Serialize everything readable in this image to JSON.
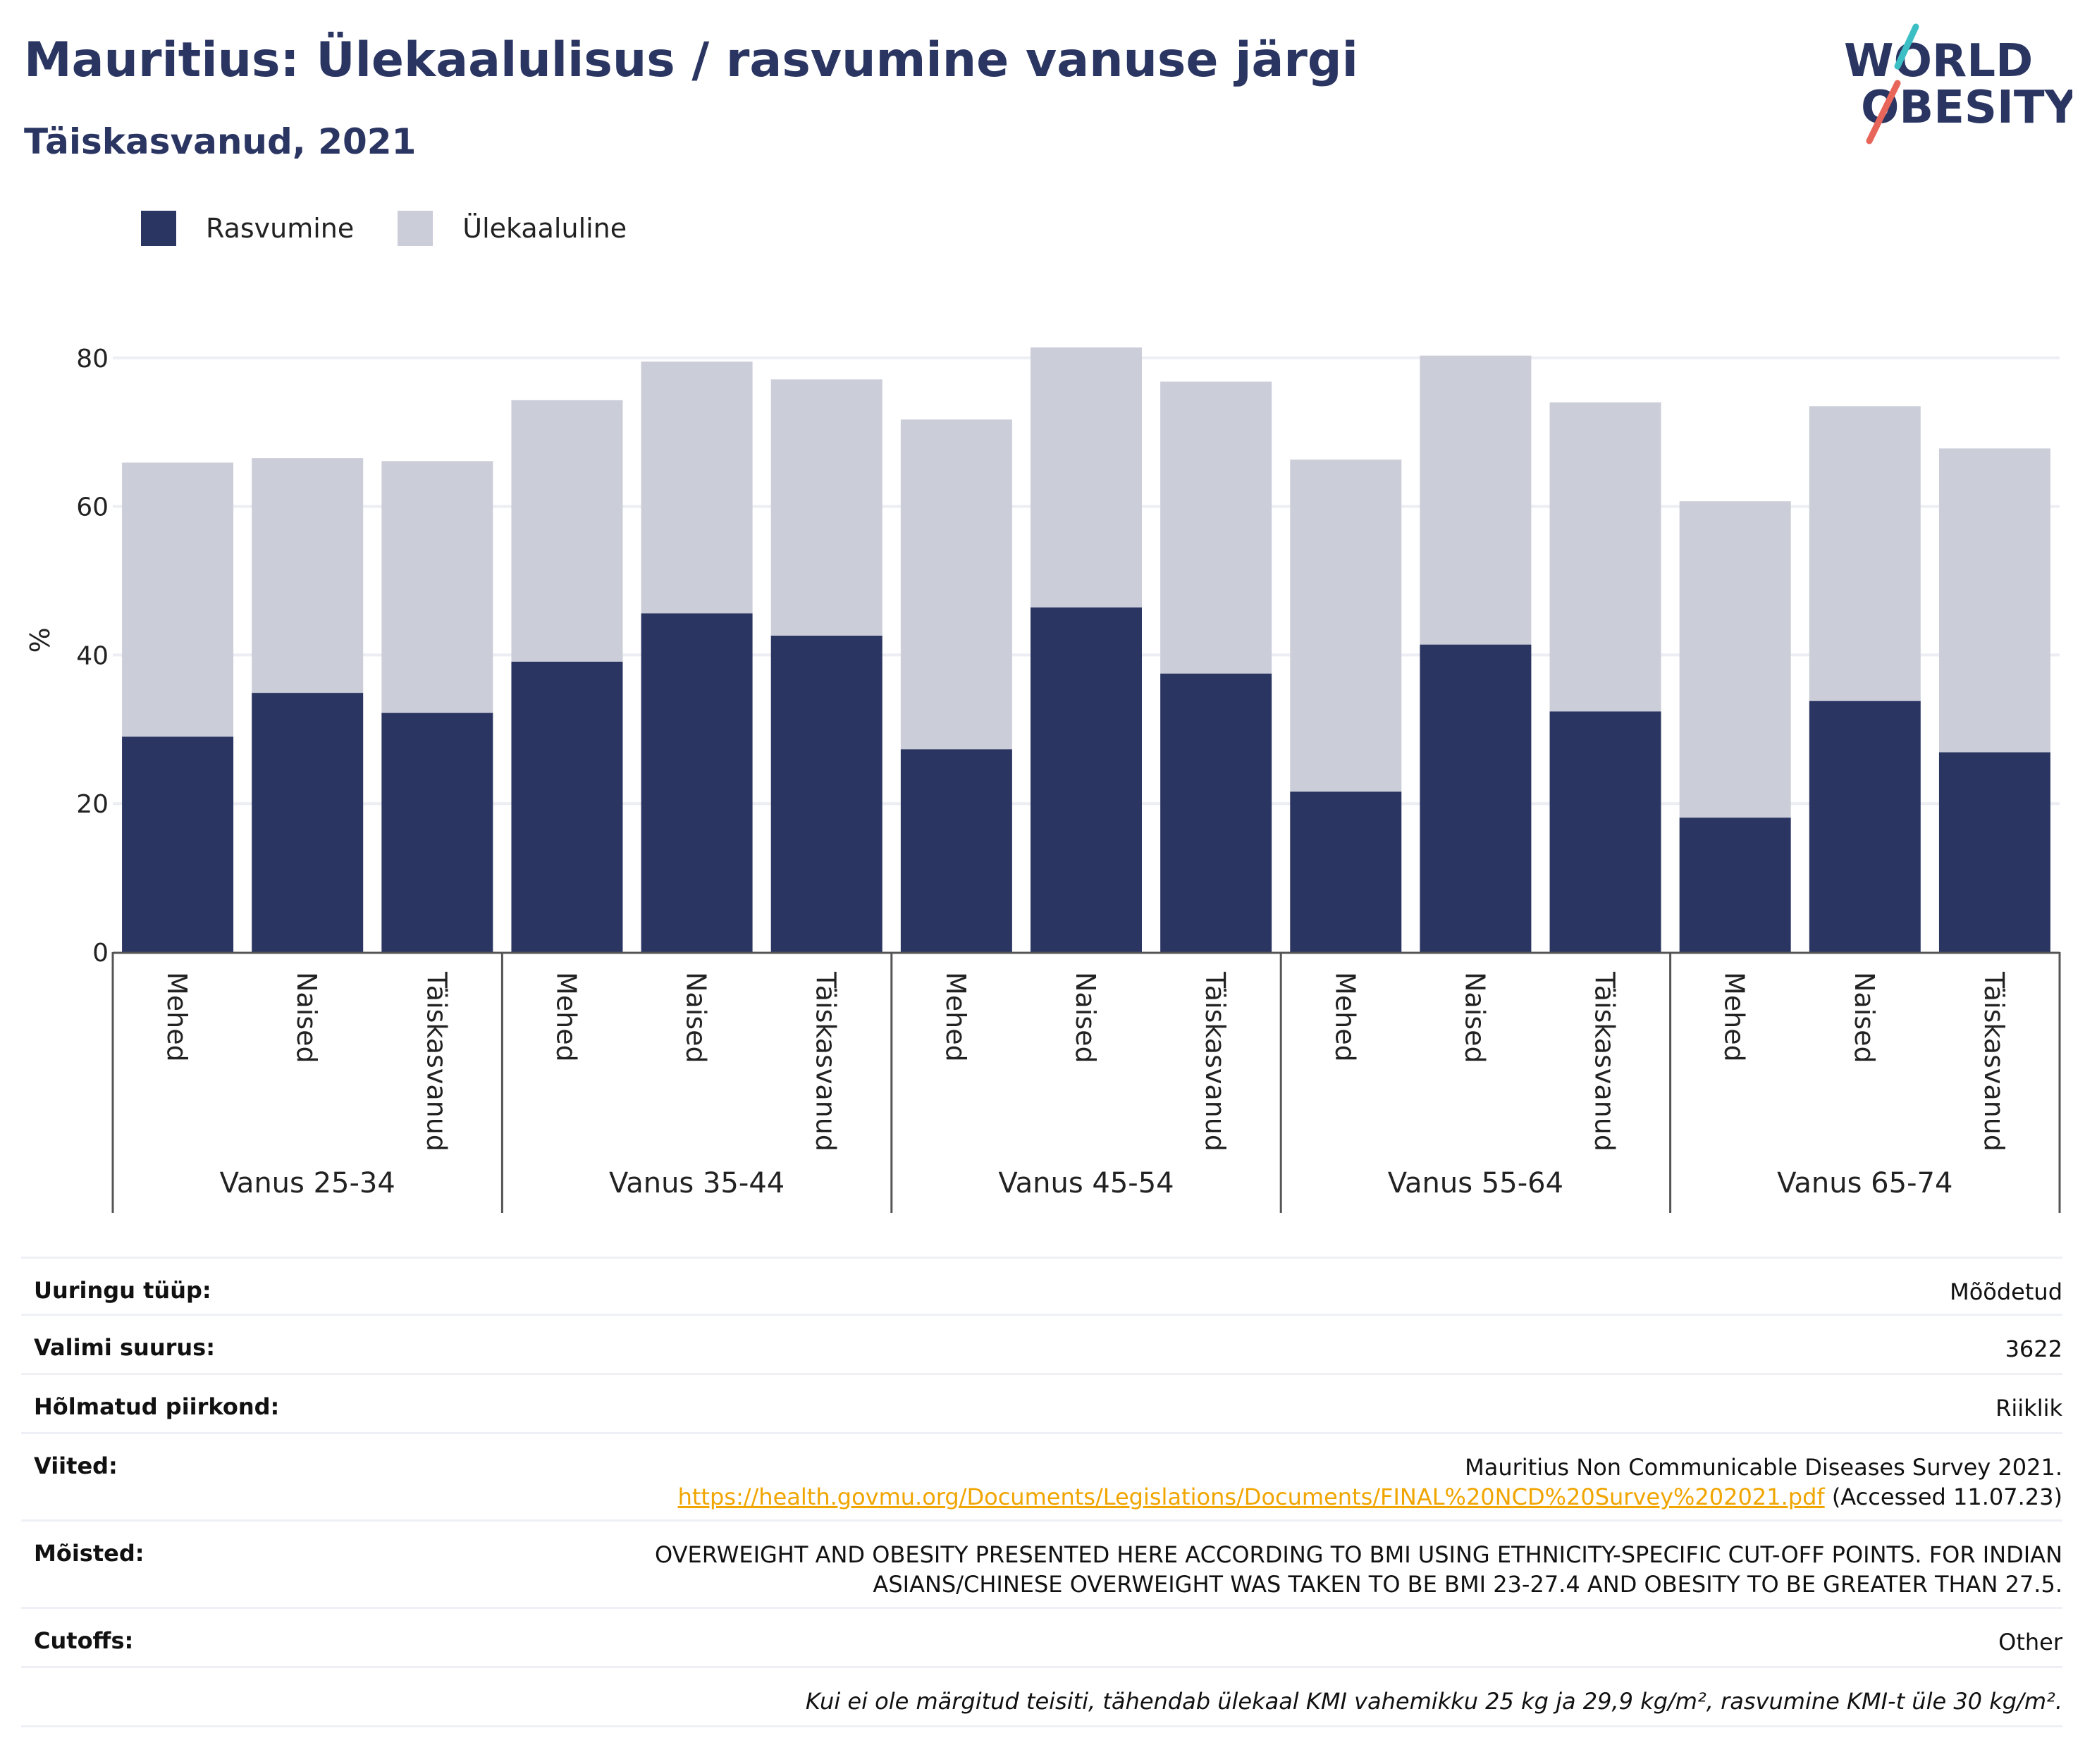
{
  "header": {
    "title": "Mauritius: Ülekaalulisus / rasvumine vanuse järgi",
    "subtitle": "Täiskasvanud, 2021"
  },
  "logo": {
    "line1": "WORLD",
    "line2": "OBESITY"
  },
  "colors": {
    "obesity": "#2a3562",
    "overweight": "#cbcdd9",
    "title": "#2a3562",
    "link": "#f0a500"
  },
  "legend": [
    {
      "label": "Rasvumine",
      "color": "#2a3562"
    },
    {
      "label": "Ülekaaluline",
      "color": "#cbcdd9"
    }
  ],
  "chart_data": {
    "type": "bar",
    "stacked": true,
    "ylabel": "%",
    "ylim": [
      0,
      85
    ],
    "yticks": [
      0,
      20,
      40,
      60,
      80
    ],
    "grid": true,
    "legend_position": "top-left",
    "groups": [
      {
        "label": "Vanus 25-34",
        "categories": [
          "Mehed",
          "Naised",
          "Täiskasvanud"
        ]
      },
      {
        "label": "Vanus 35-44",
        "categories": [
          "Mehed",
          "Naised",
          "Täiskasvanud"
        ]
      },
      {
        "label": "Vanus 45-54",
        "categories": [
          "Mehed",
          "Naised",
          "Täiskasvanud"
        ]
      },
      {
        "label": "Vanus 55-64",
        "categories": [
          "Mehed",
          "Naised",
          "Täiskasvanud"
        ]
      },
      {
        "label": "Vanus 65-74",
        "categories": [
          "Mehed",
          "Naised",
          "Täiskasvanud"
        ]
      }
    ],
    "series": [
      {
        "name": "Rasvumine",
        "values": [
          29.0,
          34.9,
          32.2,
          39.1,
          45.6,
          42.6,
          27.3,
          46.4,
          37.5,
          21.6,
          41.4,
          32.4,
          18.1,
          33.8,
          26.9
        ]
      },
      {
        "name": "Ülekaaluline",
        "values": [
          36.9,
          31.6,
          33.9,
          35.2,
          33.9,
          34.5,
          44.4,
          35.0,
          39.3,
          44.7,
          38.9,
          41.6,
          42.6,
          39.7,
          40.9
        ]
      }
    ],
    "totals": [
      65.9,
      66.5,
      66.1,
      74.3,
      79.5,
      77.1,
      71.7,
      81.4,
      76.8,
      66.3,
      80.3,
      74.0,
      60.7,
      73.5,
      67.8
    ]
  },
  "meta": {
    "rows": [
      {
        "key": "Uuringu tüüp:",
        "value": "Mõõdetud"
      },
      {
        "key": "Valimi suurus:",
        "value": "3622"
      },
      {
        "key": "Hõlmatud piirkond:",
        "value": "Riiklik"
      }
    ],
    "references": {
      "key": "Viited:",
      "line1": "Mauritius Non Communicable Diseases Survey 2021.",
      "url": "https://health.govmu.org/Documents/Legislations/Documents/FINAL%20NCD%20Survey%202021.pdf",
      "accessed": "(Accessed 11.07.23)"
    },
    "definitions": {
      "key": "Mõisted:",
      "line1": "OVERWEIGHT AND OBESITY PRESENTED HERE ACCORDING TO BMI USING ETHNICITY-SPECIFIC CUT-OFF POINTS. FOR INDIAN",
      "line2": "ASIANS/CHINESE OVERWEIGHT WAS TAKEN TO BE BMI 23-27.4 AND OBESITY TO BE GREATER THAN 27.5."
    },
    "cutoffs": {
      "key": "Cutoffs:",
      "value": "Other"
    },
    "note": "Kui ei ole märgitud teisiti, tähendab ülekaal KMI vahemikku 25 kg ja 29,9 kg/m², rasvumine KMI-t üle 30 kg/m²."
  }
}
